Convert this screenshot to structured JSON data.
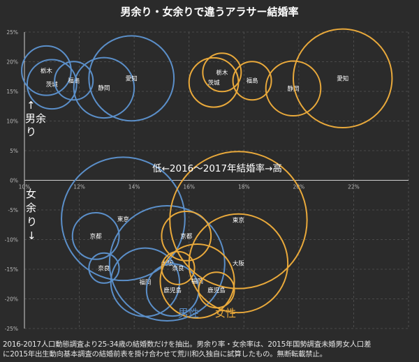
{
  "chart_data": {
    "type": "bubble-scatter",
    "title": "男余り・女余りで違うアラサー結婚率",
    "x_range": [
      10,
      24
    ],
    "y_range": [
      -25,
      25
    ],
    "x_ticks": [
      "10%",
      "12%",
      "14%",
      "16%",
      "18%",
      "20%",
      "22%"
    ],
    "y_ticks": [
      "25%",
      "20%",
      "15%",
      "10%",
      "5%",
      "0%",
      "-5%",
      "-10%",
      "-15%",
      "-20%",
      "-25%"
    ],
    "x_axis_annotation": "低←2016～2017年結婚率→高",
    "upper_label": [
      "↑",
      "男余",
      "り"
    ],
    "lower_label": [
      "女",
      "余",
      "り",
      "↓"
    ],
    "legend": {
      "male": "男性",
      "female": "女性"
    },
    "colors": {
      "male": "#5b8fc9",
      "female": "#e9a93b"
    },
    "series": [
      {
        "name": "男性",
        "points": [
          {
            "label": "栃木",
            "x": 10.8,
            "y": 18.5,
            "size": 1.8
          },
          {
            "label": "茨城",
            "x": 11.0,
            "y": 16.2,
            "size": 1.8
          },
          {
            "label": "福島",
            "x": 11.8,
            "y": 16.8,
            "size": 1.4
          },
          {
            "label": "静岡",
            "x": 12.9,
            "y": 15.6,
            "size": 2.2
          },
          {
            "label": "愛知",
            "x": 13.9,
            "y": 17.2,
            "size": 3.1
          },
          {
            "label": "東京",
            "x": 13.6,
            "y": -6.5,
            "size": 4.5
          },
          {
            "label": "京都",
            "x": 12.6,
            "y": -9.4,
            "size": 1.7
          },
          {
            "label": "奈良",
            "x": 12.9,
            "y": -14.8,
            "size": 1.1
          },
          {
            "label": "福岡",
            "x": 14.4,
            "y": -17.2,
            "size": 2.5
          },
          {
            "label": "大阪",
            "x": 15.2,
            "y": -14.0,
            "size": 4.2
          },
          {
            "label": "鹿児島",
            "x": 15.4,
            "y": -18.5,
            "size": 1.9
          }
        ]
      },
      {
        "name": "女性",
        "points": [
          {
            "label": "栃木",
            "x": 17.2,
            "y": 18.2,
            "size": 1.4
          },
          {
            "label": "茨城",
            "x": 16.9,
            "y": 16.5,
            "size": 1.8
          },
          {
            "label": "福島",
            "x": 18.3,
            "y": 16.8,
            "size": 1.4
          },
          {
            "label": "静岡",
            "x": 19.8,
            "y": 15.5,
            "size": 2.0
          },
          {
            "label": "愛知",
            "x": 21.6,
            "y": 17.2,
            "size": 3.6
          },
          {
            "label": "東京",
            "x": 17.8,
            "y": -6.7,
            "size": 5.0
          },
          {
            "label": "京都",
            "x": 15.9,
            "y": -9.4,
            "size": 1.8
          },
          {
            "label": "奈良",
            "x": 15.6,
            "y": -14.8,
            "size": 1.2
          },
          {
            "label": "大阪",
            "x": 17.8,
            "y": -14.0,
            "size": 3.6
          },
          {
            "label": "福岡",
            "x": 16.3,
            "y": -17.0,
            "size": 2.7
          },
          {
            "label": "鹿児島",
            "x": 17.0,
            "y": -18.5,
            "size": 1.3
          }
        ]
      }
    ]
  },
  "caption": {
    "line1": "2016-2017人口動態調査より25-34歳の結婚数だけを抽出。男余り率・女余率は、2015年国勢調査未婚男女人口差",
    "line2": "に2015年出生動向基本調査の結婚前表を掛け合わせて荒川和久独自に試算したもの。無断転載禁止。"
  }
}
